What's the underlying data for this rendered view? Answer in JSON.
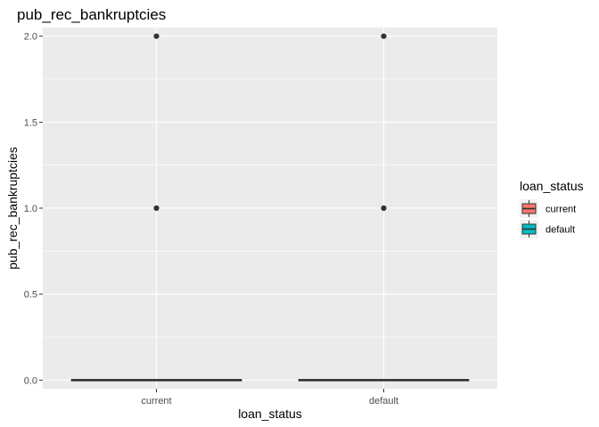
{
  "chart_data": {
    "type": "boxplot",
    "title": "pub_rec_bankruptcies",
    "xlabel": "loan_status",
    "ylabel": "pub_rec_bankruptcies",
    "categories": [
      "current",
      "default"
    ],
    "ylim": [
      -0.05,
      2.05
    ],
    "yticks": [
      0.0,
      0.5,
      1.0,
      1.5,
      2.0
    ],
    "ytick_labels": [
      "0.0",
      "0.5",
      "1.0",
      "1.5",
      "2.0"
    ],
    "boxes": [
      {
        "category": "current",
        "min": 0,
        "q1": 0,
        "median": 0,
        "q3": 0,
        "max": 0,
        "outliers": [
          1,
          2
        ],
        "fill": "#F8766D"
      },
      {
        "category": "default",
        "min": 0,
        "q1": 0,
        "median": 0,
        "q3": 0,
        "max": 0,
        "outliers": [
          1,
          2
        ],
        "fill": "#00BFC4"
      }
    ],
    "legend": {
      "title": "loan_status",
      "placement": "right",
      "entries": [
        {
          "label": "current",
          "color": "#F8766D"
        },
        {
          "label": "default",
          "color": "#00BFC4"
        }
      ]
    },
    "grid": true,
    "panel_color": "#EBEBEB",
    "grid_color": "#FFFFFF"
  }
}
